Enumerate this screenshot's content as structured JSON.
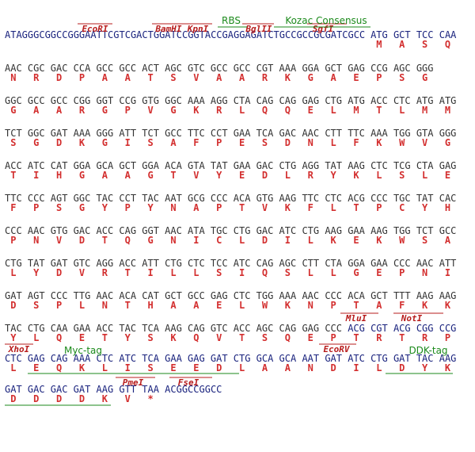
{
  "dna_color": "#333333",
  "utr_color": "#1a237e",
  "aa_color": "#d32f2f",
  "enzyme_color": "#b71c1c",
  "feature_color": "#1b8a1b",
  "rows": [
    {
      "leader": "ATAGGGCGGCCGGGAATTCGTCGACTGGATCCGGTACCGAGGAGATCTGCCGCCGCGATCGCC",
      "codons": [
        "ATG",
        "GCT",
        "TCC",
        "CAA"
      ],
      "amino_acids": [
        "M",
        "A",
        "S",
        "Q"
      ]
    },
    {
      "codons": [
        "AAC",
        "CGC",
        "GAC",
        "CCA",
        "GCC",
        "GCC",
        "ACT",
        "AGC",
        "GTC",
        "GCC",
        "GCC",
        "CGT",
        "AAA",
        "GGA",
        "GCT",
        "GAG",
        "CCG",
        "AGC",
        "GGG"
      ],
      "amino_acids": [
        "N",
        "R",
        "D",
        "P",
        "A",
        "A",
        "T",
        "S",
        "V",
        "A",
        "A",
        "R",
        "K",
        "G",
        "A",
        "E",
        "P",
        "S",
        "G"
      ]
    },
    {
      "codons": [
        "GGC",
        "GCC",
        "GCC",
        "CGG",
        "GGT",
        "CCG",
        "GTG",
        "GGC",
        "AAA",
        "AGG",
        "CTA",
        "CAG",
        "CAG",
        "GAG",
        "CTG",
        "ATG",
        "ACC",
        "CTC",
        "ATG",
        "ATG"
      ],
      "amino_acids": [
        "G",
        "A",
        "A",
        "R",
        "G",
        "P",
        "V",
        "G",
        "K",
        "R",
        "L",
        "Q",
        "Q",
        "E",
        "L",
        "M",
        "T",
        "L",
        "M",
        "M"
      ]
    },
    {
      "codons": [
        "TCT",
        "GGC",
        "GAT",
        "AAA",
        "GGG",
        "ATT",
        "TCT",
        "GCC",
        "TTC",
        "CCT",
        "GAA",
        "TCA",
        "GAC",
        "AAC",
        "CTT",
        "TTC",
        "AAA",
        "TGG",
        "GTA",
        "GGG"
      ],
      "amino_acids": [
        "S",
        "G",
        "D",
        "K",
        "G",
        "I",
        "S",
        "A",
        "F",
        "P",
        "E",
        "S",
        "D",
        "N",
        "L",
        "F",
        "K",
        "W",
        "V",
        "G"
      ]
    },
    {
      "codons": [
        "ACC",
        "ATC",
        "CAT",
        "GGA",
        "GCA",
        "GCT",
        "GGA",
        "ACA",
        "GTA",
        "TAT",
        "GAA",
        "GAC",
        "CTG",
        "AGG",
        "TAT",
        "AAG",
        "CTC",
        "TCG",
        "CTA",
        "GAG"
      ],
      "amino_acids": [
        "T",
        "I",
        "H",
        "G",
        "A",
        "A",
        "G",
        "T",
        "V",
        "Y",
        "E",
        "D",
        "L",
        "R",
        "Y",
        "K",
        "L",
        "S",
        "L",
        "E"
      ]
    },
    {
      "codons": [
        "TTC",
        "CCC",
        "AGT",
        "GGC",
        "TAC",
        "CCT",
        "TAC",
        "AAT",
        "GCG",
        "CCC",
        "ACA",
        "GTG",
        "AAG",
        "TTC",
        "CTC",
        "ACG",
        "CCC",
        "TGC",
        "TAT",
        "CAC"
      ],
      "amino_acids": [
        "F",
        "P",
        "S",
        "G",
        "Y",
        "P",
        "Y",
        "N",
        "A",
        "P",
        "T",
        "V",
        "K",
        "F",
        "L",
        "T",
        "P",
        "C",
        "Y",
        "H"
      ]
    },
    {
      "codons": [
        "CCC",
        "AAC",
        "GTG",
        "GAC",
        "ACC",
        "CAG",
        "GGT",
        "AAC",
        "ATA",
        "TGC",
        "CTG",
        "GAC",
        "ATC",
        "CTG",
        "AAG",
        "GAA",
        "AAG",
        "TGG",
        "TCT",
        "GCC"
      ],
      "amino_acids": [
        "P",
        "N",
        "V",
        "D",
        "T",
        "Q",
        "G",
        "N",
        "I",
        "C",
        "L",
        "D",
        "I",
        "L",
        "K",
        "E",
        "K",
        "W",
        "S",
        "A"
      ]
    },
    {
      "codons": [
        "CTG",
        "TAT",
        "GAT",
        "GTC",
        "AGG",
        "ACC",
        "ATT",
        "CTG",
        "CTC",
        "TCC",
        "ATC",
        "CAG",
        "AGC",
        "CTT",
        "CTA",
        "GGA",
        "GAA",
        "CCC",
        "AAC",
        "ATT"
      ],
      "amino_acids": [
        "L",
        "Y",
        "D",
        "V",
        "R",
        "T",
        "I",
        "L",
        "L",
        "S",
        "I",
        "Q",
        "S",
        "L",
        "L",
        "G",
        "E",
        "P",
        "N",
        "I"
      ]
    },
    {
      "codons": [
        "GAT",
        "AGT",
        "CCC",
        "TTG",
        "AAC",
        "ACA",
        "CAT",
        "GCT",
        "GCC",
        "GAG",
        "CTC",
        "TGG",
        "AAA",
        "AAC",
        "CCC",
        "ACA",
        "GCT",
        "TTT",
        "AAG",
        "AAG"
      ],
      "amino_acids": [
        "D",
        "S",
        "P",
        "L",
        "N",
        "T",
        "H",
        "A",
        "A",
        "E",
        "L",
        "W",
        "K",
        "N",
        "P",
        "T",
        "A",
        "F",
        "K",
        "K"
      ]
    },
    {
      "codons": [
        "TAC",
        "CTG",
        "CAA",
        "GAA",
        "ACC",
        "TAC",
        "TCA",
        "AAG",
        "CAG",
        "GTC",
        "ACC",
        "AGC",
        "CAG",
        "GAG",
        "CCC",
        "ACG",
        "CGT",
        "ACG",
        "CGG",
        "CCG"
      ],
      "amino_acids": [
        "Y",
        "L",
        "Q",
        "E",
        "T",
        "Y",
        "S",
        "K",
        "Q",
        "V",
        "T",
        "S",
        "Q",
        "E",
        "P",
        "T",
        "R",
        "T",
        "R",
        "P"
      ]
    },
    {
      "codons": [
        "CTC",
        "GAG",
        "CAG",
        "AAA",
        "CTC",
        "ATC",
        "TCA",
        "GAA",
        "GAG",
        "GAT",
        "CTG",
        "GCA",
        "GCA",
        "AAT",
        "GAT",
        "ATC",
        "CTG",
        "GAT",
        "TAC",
        "AAG"
      ],
      "amino_acids": [
        "L",
        "E",
        "Q",
        "K",
        "L",
        "I",
        "S",
        "E",
        "E",
        "D",
        "L",
        "A",
        "A",
        "N",
        "D",
        "I",
        "L",
        "D",
        "Y",
        "K"
      ]
    },
    {
      "codons": [
        "GAT",
        "GAC",
        "GAC",
        "GAT",
        "AAG",
        "GTT",
        "TAA"
      ],
      "amino_acids": [
        "D",
        "D",
        "D",
        "D",
        "K",
        "V",
        "*"
      ],
      "trailer": "ACGGCCGGCC"
    }
  ],
  "enzymes": [
    "EcoRI",
    "BamHI",
    "KpnI",
    "BglII",
    "SgfI",
    "MluI",
    "NotI",
    "XhoI",
    "EcoRV",
    "PmeI",
    "FseI"
  ],
  "features": [
    "RBS",
    "Kozac Consensus",
    "Myc-tag",
    "DDK-tag"
  ]
}
